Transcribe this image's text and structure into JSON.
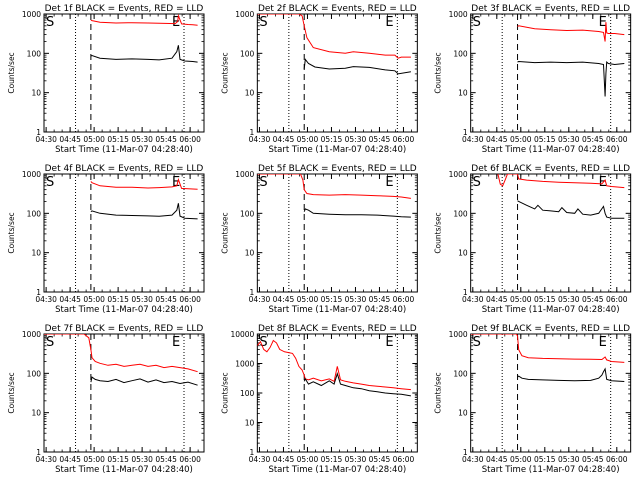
{
  "chart_data": [
    {
      "type": "line",
      "title": "Det 1f BLACK = Events, RED = LLD",
      "xlabel": "Start Time (11-Mar-07 04:28:40)",
      "ylabel": "Counts/sec",
      "xticks": [
        "04:30",
        "04:45",
        "05:00",
        "05:15",
        "05:30",
        "05:45",
        "06:00"
      ],
      "yscale": "log",
      "ylim": [
        1,
        1000
      ],
      "yticks": [
        "1",
        "10",
        "100",
        "1000"
      ],
      "start_marker": "S",
      "end_marker": "E",
      "xlim_minutes": [
        0,
        100
      ],
      "dotted_lines_min": [
        19.7,
        87.5
      ],
      "dashed_line_min": 29.3,
      "series": [
        {
          "color": "#ff0000",
          "x": [
            29.3,
            30,
            35,
            45,
            55,
            65,
            72,
            82,
            83.5,
            84,
            86,
            90,
            93,
            96
          ],
          "y": [
            700,
            680,
            620,
            590,
            600,
            590,
            580,
            570,
            640,
            900,
            560,
            540,
            530,
            520
          ]
        },
        {
          "color": "#000000",
          "x": [
            29.3,
            30,
            35,
            45,
            55,
            65,
            72,
            80,
            83,
            84,
            85,
            88,
            93,
            96
          ],
          "y": [
            85,
            88,
            75,
            70,
            72,
            70,
            68,
            75,
            110,
            160,
            70,
            64,
            62,
            60
          ]
        }
      ]
    },
    {
      "type": "line",
      "title": "Det 2f BLACK = Events, RED = LLD",
      "xlabel": "Start Time (11-Mar-07 04:28:40)",
      "ylabel": "Counts/sec",
      "xticks": [
        "04:30",
        "04:45",
        "05:00",
        "05:15",
        "05:30",
        "05:45",
        "06:00"
      ],
      "yscale": "log",
      "ylim": [
        1,
        1000
      ],
      "yticks": [
        "1",
        "10",
        "100",
        "1000"
      ],
      "start_marker": "S",
      "end_marker": "E",
      "xlim_minutes": [
        0,
        100
      ],
      "dotted_lines_min": [
        19.7,
        87.5
      ],
      "dashed_line_min": 29.3,
      "series": [
        {
          "color": "#ff0000",
          "x": [
            0,
            10,
            22,
            26,
            28,
            29.3,
            31,
            35,
            45,
            55,
            60,
            70,
            80,
            86,
            88,
            90,
            96
          ],
          "y": [
            1000,
            1000,
            1000,
            1000,
            900,
            500,
            250,
            140,
            110,
            100,
            110,
            100,
            90,
            90,
            75,
            80,
            80
          ]
        },
        {
          "color": "#000000",
          "x": [
            29.3,
            30,
            32,
            36,
            45,
            55,
            60,
            70,
            80,
            86,
            88,
            96
          ],
          "y": [
            40,
            70,
            55,
            45,
            40,
            42,
            46,
            44,
            38,
            36,
            30,
            34
          ]
        }
      ]
    },
    {
      "type": "line",
      "title": "Det 3f BLACK = Events, RED = LLD",
      "xlabel": "Start Time (11-Mar-07 04:28:40)",
      "ylabel": "Counts/sec",
      "xticks": [
        "04:30",
        "04:45",
        "05:00",
        "05:15",
        "05:30",
        "05:45",
        "06:00"
      ],
      "yscale": "log",
      "ylim": [
        1,
        1000
      ],
      "yticks": [
        "1",
        "10",
        "100",
        "1000"
      ],
      "start_marker": "S",
      "end_marker": "E",
      "xlim_minutes": [
        0,
        100
      ],
      "dotted_lines_min": [
        19.7,
        87.5
      ],
      "dashed_line_min": 29.3,
      "series": [
        {
          "color": "#ff0000",
          "x": [
            29.3,
            30,
            40,
            50,
            60,
            70,
            80,
            83,
            84,
            84.5,
            85,
            86,
            90,
            96
          ],
          "y": [
            480,
            500,
            420,
            400,
            380,
            390,
            360,
            340,
            200,
            620,
            330,
            320,
            320,
            300
          ]
        },
        {
          "color": "#000000",
          "x": [
            29.3,
            30,
            40,
            50,
            60,
            70,
            80,
            83,
            84,
            84.5,
            85,
            86,
            90,
            96
          ],
          "y": [
            60,
            62,
            58,
            60,
            58,
            60,
            55,
            52,
            8,
            30,
            60,
            55,
            52,
            55
          ]
        }
      ]
    },
    {
      "type": "line",
      "title": "Det 4f BLACK = Events, RED = LLD",
      "xlabel": "Start Time (11-Mar-07 04:28:40)",
      "ylabel": "Counts/sec",
      "xticks": [
        "04:30",
        "04:45",
        "05:00",
        "05:15",
        "05:30",
        "05:45",
        "06:00"
      ],
      "yscale": "log",
      "ylim": [
        1,
        1000
      ],
      "yticks": [
        "1",
        "10",
        "100",
        "1000"
      ],
      "start_marker": "S",
      "end_marker": "E",
      "xlim_minutes": [
        0,
        100
      ],
      "dotted_lines_min": [
        19.7,
        87.5
      ],
      "dashed_line_min": 29.3,
      "series": [
        {
          "color": "#ff0000",
          "x": [
            29.3,
            30,
            35,
            45,
            55,
            65,
            72,
            80,
            83,
            84,
            86,
            90,
            96
          ],
          "y": [
            650,
            600,
            500,
            460,
            460,
            440,
            450,
            470,
            500,
            720,
            430,
            420,
            410
          ]
        },
        {
          "color": "#000000",
          "x": [
            29.3,
            30,
            35,
            45,
            55,
            65,
            72,
            80,
            83,
            84,
            85,
            88,
            96
          ],
          "y": [
            110,
            115,
            100,
            90,
            88,
            86,
            84,
            90,
            120,
            180,
            85,
            75,
            72
          ]
        }
      ]
    },
    {
      "type": "line",
      "title": "Det 5f BLACK = Events, RED = LLD",
      "xlabel": "Start Time (11-Mar-07 04:28:40)",
      "ylabel": "Counts/sec",
      "xticks": [
        "04:30",
        "04:45",
        "05:00",
        "05:15",
        "05:30",
        "05:45",
        "06:00"
      ],
      "yscale": "log",
      "ylim": [
        1,
        1000
      ],
      "yticks": [
        "1",
        "10",
        "100",
        "1000"
      ],
      "start_marker": "S",
      "end_marker": "E",
      "xlim_minutes": [
        0,
        100
      ],
      "dotted_lines_min": [
        19.7,
        87.5
      ],
      "dashed_line_min": 29.3,
      "series": [
        {
          "color": "#ff0000",
          "x": [
            0,
            15,
            25,
            27,
            28.5,
            29.3,
            31,
            35,
            45,
            55,
            65,
            75,
            85,
            90,
            96
          ],
          "y": [
            1000,
            1000,
            1000,
            1000,
            700,
            400,
            320,
            300,
            290,
            300,
            290,
            280,
            270,
            260,
            240
          ]
        },
        {
          "color": "#000000",
          "x": [
            29.3,
            30,
            32,
            35,
            45,
            55,
            65,
            75,
            85,
            90,
            96
          ],
          "y": [
            110,
            130,
            120,
            100,
            95,
            92,
            92,
            90,
            85,
            82,
            80
          ]
        }
      ]
    },
    {
      "type": "line",
      "title": "Det 6f BLACK = Events, RED = LLD",
      "xlabel": "Start Time (11-Mar-07 04:28:40)",
      "ylabel": "Counts/sec",
      "xticks": [
        "04:30",
        "04:45",
        "05:00",
        "05:15",
        "05:30",
        "05:45",
        "06:00"
      ],
      "yscale": "log",
      "ylim": [
        1,
        1000
      ],
      "yticks": [
        "1",
        "10",
        "100",
        "1000"
      ],
      "start_marker": "S",
      "end_marker": "E",
      "xlim_minutes": [
        0,
        100
      ],
      "dotted_lines_min": [
        19.7,
        87.5
      ],
      "dashed_line_min": 29.3,
      "series": [
        {
          "color": "#ff0000",
          "x": [
            17,
            18.5,
            20,
            21.5,
            23,
            26,
            29.3,
            30,
            35,
            45,
            55,
            65,
            75,
            82,
            84,
            85,
            88,
            96
          ],
          "y": [
            1000,
            550,
            500,
            700,
            1000,
            1000,
            1000,
            750,
            700,
            650,
            620,
            600,
            580,
            560,
            700,
            500,
            480,
            450
          ]
        },
        {
          "color": "#000000",
          "x": [
            29.3,
            30,
            35,
            40,
            42,
            45,
            50,
            55,
            57,
            60,
            65,
            67,
            70,
            75,
            80,
            83,
            84,
            85,
            88,
            96
          ],
          "y": [
            210,
            200,
            160,
            130,
            160,
            120,
            115,
            110,
            140,
            105,
            100,
            130,
            95,
            90,
            100,
            150,
            100,
            80,
            75,
            75
          ]
        }
      ]
    },
    {
      "type": "line",
      "title": "Det 7f BLACK = Events, RED = LLD",
      "xlabel": "Start Time (11-Mar-07 04:28:40)",
      "ylabel": "Counts/sec",
      "xticks": [
        "04:30",
        "04:45",
        "05:00",
        "05:15",
        "05:30",
        "05:45",
        "06:00"
      ],
      "yscale": "log",
      "ylim": [
        1,
        1000
      ],
      "yticks": [
        "1",
        "10",
        "100",
        "1000"
      ],
      "start_marker": "S",
      "end_marker": "E",
      "xlim_minutes": [
        0,
        100
      ],
      "dotted_lines_min": [
        19.7,
        87.5
      ],
      "dashed_line_min": 29.3,
      "series": [
        {
          "color": "#ff0000",
          "x": [
            0,
            15,
            25,
            28,
            29.3,
            30,
            32,
            35,
            40,
            45,
            50,
            55,
            60,
            65,
            70,
            75,
            80,
            85,
            90,
            96
          ],
          "y": [
            1000,
            1000,
            1000,
            800,
            400,
            250,
            200,
            180,
            160,
            170,
            150,
            160,
            170,
            150,
            160,
            140,
            150,
            140,
            130,
            110
          ]
        },
        {
          "color": "#000000",
          "x": [
            29.3,
            30,
            32,
            35,
            40,
            45,
            50,
            55,
            60,
            65,
            70,
            75,
            80,
            85,
            90,
            96
          ],
          "y": [
            60,
            80,
            70,
            65,
            62,
            70,
            58,
            65,
            72,
            60,
            68,
            58,
            62,
            55,
            60,
            50
          ]
        }
      ]
    },
    {
      "type": "line",
      "title": "Det 8f BLACK = Events, RED = LLD",
      "xlabel": "Start Time (11-Mar-07 04:28:40)",
      "ylabel": "Counts/sec",
      "xticks": [
        "04:30",
        "04:45",
        "05:00",
        "05:15",
        "05:30",
        "05:45",
        "06:00"
      ],
      "yscale": "log",
      "ylim": [
        1,
        10000
      ],
      "yticks": [
        "1",
        "10",
        "100",
        "1000",
        "10000"
      ],
      "start_marker": "S",
      "end_marker": "E",
      "xlim_minutes": [
        0,
        100
      ],
      "dotted_lines_min": [
        19.7,
        87.5
      ],
      "dashed_line_min": 29.3,
      "series": [
        {
          "color": "#ff0000",
          "x": [
            0,
            2,
            4,
            6,
            8,
            10,
            12,
            14,
            17,
            20,
            22,
            24,
            26,
            28,
            29.3,
            30,
            32,
            35,
            40,
            45,
            48,
            50,
            52,
            55,
            60,
            65,
            70,
            75,
            80,
            85,
            90,
            96
          ],
          "y": [
            4000,
            5500,
            3000,
            2500,
            3500,
            6000,
            5000,
            3000,
            2500,
            2300,
            2200,
            1500,
            800,
            600,
            400,
            300,
            280,
            320,
            260,
            300,
            250,
            800,
            280,
            250,
            220,
            200,
            180,
            170,
            160,
            150,
            140,
            130
          ]
        },
        {
          "color": "#000000",
          "x": [
            29.3,
            30,
            32,
            35,
            40,
            45,
            48,
            50,
            52,
            55,
            60,
            65,
            70,
            75,
            80,
            85,
            90,
            96
          ],
          "y": [
            250,
            300,
            200,
            240,
            180,
            260,
            200,
            450,
            200,
            180,
            150,
            140,
            120,
            110,
            100,
            95,
            90,
            80
          ]
        }
      ]
    },
    {
      "type": "line",
      "title": "Det 9f BLACK = Events, RED = LLD",
      "xlabel": "Start Time (11-Mar-07 04:28:40)",
      "ylabel": "Counts/sec",
      "xticks": [
        "04:30",
        "04:45",
        "05:00",
        "05:15",
        "05:30",
        "05:45",
        "06:00"
      ],
      "yscale": "log",
      "ylim": [
        1,
        1000
      ],
      "yticks": [
        "1",
        "10",
        "100",
        "1000"
      ],
      "start_marker": "S",
      "end_marker": "E",
      "xlim_minutes": [
        0,
        100
      ],
      "dotted_lines_min": [
        19.7,
        87.5
      ],
      "dashed_line_min": 29.3,
      "series": [
        {
          "color": "#ff0000",
          "x": [
            0,
            15,
            25,
            28.5,
            29.3,
            30,
            32,
            36,
            45,
            55,
            65,
            75,
            82,
            84,
            85,
            88,
            96
          ],
          "y": [
            1000,
            1000,
            1000,
            1000,
            900,
            400,
            280,
            250,
            240,
            235,
            230,
            228,
            225,
            260,
            220,
            200,
            190
          ]
        },
        {
          "color": "#000000",
          "x": [
            29.3,
            30,
            32,
            36,
            45,
            55,
            65,
            75,
            80,
            82,
            83,
            84,
            85,
            88,
            96
          ],
          "y": [
            80,
            85,
            75,
            70,
            68,
            66,
            65,
            66,
            75,
            90,
            110,
            130,
            70,
            65,
            62
          ]
        }
      ]
    }
  ]
}
